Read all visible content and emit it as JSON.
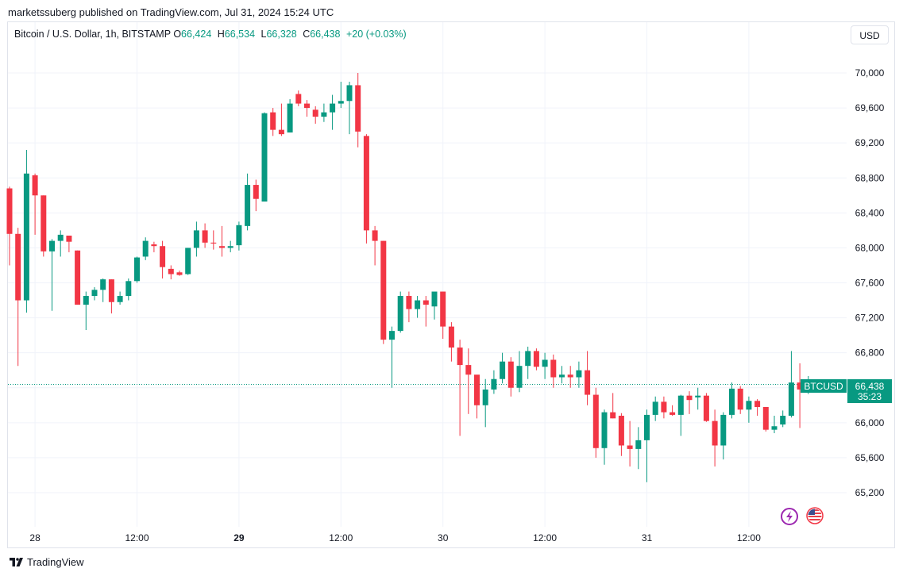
{
  "header": {
    "caption": "marketssuberg published on TradingView.com, Jul 31, 2024 15:24 UTC"
  },
  "symbol": {
    "title": "Bitcoin / U.S. Dollar, 1h, BITSTAMP",
    "open_label": "O",
    "open": "66,424",
    "high_label": "H",
    "high": "66,534",
    "low_label": "L",
    "low": "66,328",
    "close_label": "C",
    "close": "66,438",
    "change": "+20 (+0.03%)"
  },
  "currency_button": "USD",
  "price_tag": {
    "ticker": "BTCUSD",
    "price": "66,438",
    "countdown": "35:23"
  },
  "footer": {
    "brand": "TradingView"
  },
  "colors": {
    "up": "#089981",
    "down": "#f23645",
    "grid": "#f0f3fa",
    "axis_text": "#131722"
  },
  "icons": [
    "lightning-event-icon",
    "us-flag-icon"
  ],
  "chart_data": {
    "type": "candlestick",
    "title": "Bitcoin / U.S. Dollar, 1h, BITSTAMP",
    "ylim": [
      64950,
      70300
    ],
    "y_ticks": [
      "70,000",
      "69,600",
      "69,200",
      "68,800",
      "68,400",
      "68,000",
      "67,600",
      "67,200",
      "66,800",
      "66,400",
      "66,000",
      "65,600",
      "65,200"
    ],
    "y_tick_values": [
      70000,
      69600,
      69200,
      68800,
      68400,
      68000,
      67600,
      67200,
      66800,
      66400,
      66000,
      65600,
      65200
    ],
    "x_ticks": [
      {
        "label": "28",
        "bar": 3,
        "bold": false
      },
      {
        "label": "12:00",
        "bar": 15,
        "bold": false
      },
      {
        "label": "29",
        "bar": 27,
        "bold": true
      },
      {
        "label": "12:00",
        "bar": 39,
        "bold": false
      },
      {
        "label": "30",
        "bar": 51,
        "bold": false
      },
      {
        "label": "12:00",
        "bar": 63,
        "bold": false
      },
      {
        "label": "31",
        "bar": 75,
        "bold": false
      },
      {
        "label": "12:00",
        "bar": 87,
        "bold": false
      }
    ],
    "last_price": 66438,
    "candles": [
      [
        68680,
        68700,
        67800,
        68160
      ],
      [
        68160,
        68230,
        66650,
        67400
      ],
      [
        67400,
        69120,
        67260,
        68850
      ],
      [
        68830,
        68850,
        68150,
        68600
      ],
      [
        68600,
        68600,
        67900,
        67960
      ],
      [
        67960,
        68100,
        67280,
        68080
      ],
      [
        68080,
        68200,
        67900,
        68150
      ],
      [
        68140,
        68140,
        67950,
        68070
      ],
      [
        67970,
        67970,
        67350,
        67350
      ],
      [
        67350,
        67500,
        67060,
        67450
      ],
      [
        67450,
        67550,
        67400,
        67520
      ],
      [
        67520,
        67650,
        67380,
        67640
      ],
      [
        67640,
        67640,
        67250,
        67380
      ],
      [
        67380,
        67500,
        67350,
        67450
      ],
      [
        67450,
        67650,
        67400,
        67620
      ],
      [
        67620,
        67900,
        67600,
        67890
      ],
      [
        67900,
        68120,
        67860,
        68080
      ],
      [
        68040,
        68070,
        67950,
        68020
      ],
      [
        68020,
        68080,
        67650,
        67780
      ],
      [
        67760,
        67800,
        67640,
        67700
      ],
      [
        67720,
        67740,
        67680,
        67690
      ],
      [
        67700,
        68000,
        67690,
        68000
      ],
      [
        68000,
        68300,
        67900,
        68200
      ],
      [
        68200,
        68280,
        68000,
        68060
      ],
      [
        68060,
        68200,
        67980,
        68050
      ],
      [
        68020,
        68250,
        67900,
        68000
      ],
      [
        68000,
        68080,
        67950,
        68020
      ],
      [
        68030,
        68300,
        67970,
        68260
      ],
      [
        68250,
        68850,
        68200,
        68720
      ],
      [
        68720,
        68780,
        68420,
        68560
      ],
      [
        68530,
        69550,
        68530,
        69540
      ],
      [
        69550,
        69600,
        69280,
        69350
      ],
      [
        69350,
        69650,
        69280,
        69300
      ],
      [
        69320,
        69700,
        69320,
        69650
      ],
      [
        69760,
        69800,
        69620,
        69650
      ],
      [
        69650,
        69690,
        69500,
        69600
      ],
      [
        69580,
        69620,
        69420,
        69500
      ],
      [
        69500,
        69650,
        69440,
        69550
      ],
      [
        69550,
        69750,
        69350,
        69650
      ],
      [
        69650,
        69900,
        69600,
        69680
      ],
      [
        69680,
        69900,
        69300,
        69860
      ],
      [
        69860,
        70000,
        69150,
        69330
      ],
      [
        69280,
        69300,
        68050,
        68200
      ],
      [
        68200,
        68250,
        67800,
        68080
      ],
      [
        68080,
        68080,
        66900,
        66950
      ],
      [
        66950,
        67100,
        66400,
        67050
      ],
      [
        67050,
        67500,
        67030,
        67450
      ],
      [
        67450,
        67500,
        67150,
        67300
      ],
      [
        67300,
        67450,
        67200,
        67400
      ],
      [
        67400,
        67450,
        67100,
        67350
      ],
      [
        67330,
        67450,
        67180,
        67500
      ],
      [
        67500,
        67500,
        66960,
        67100
      ],
      [
        67100,
        67150,
        66700,
        66860
      ],
      [
        66860,
        66950,
        65850,
        66660
      ],
      [
        66660,
        66850,
        66100,
        66550
      ],
      [
        66550,
        66500,
        66050,
        66200
      ],
      [
        66200,
        66500,
        65950,
        66380
      ],
      [
        66380,
        66600,
        66330,
        66500
      ],
      [
        66500,
        66800,
        66450,
        66700
      ],
      [
        66700,
        66750,
        66300,
        66400
      ],
      [
        66400,
        66820,
        66350,
        66650
      ],
      [
        66650,
        66870,
        66500,
        66820
      ],
      [
        66820,
        66850,
        66600,
        66640
      ],
      [
        66640,
        66800,
        66500,
        66720
      ],
      [
        66720,
        66780,
        66400,
        66520
      ],
      [
        66520,
        66650,
        66450,
        66550
      ],
      [
        66550,
        66650,
        66400,
        66520
      ],
      [
        66520,
        66700,
        66400,
        66600
      ],
      [
        66600,
        66820,
        66200,
        66320
      ],
      [
        66320,
        66400,
        65600,
        65710
      ],
      [
        65710,
        66150,
        65520,
        66120
      ],
      [
        66120,
        66340,
        66050,
        66050
      ],
      [
        66080,
        66110,
        65620,
        65740
      ],
      [
        65740,
        66020,
        65500,
        65700
      ],
      [
        65700,
        65950,
        65470,
        65800
      ],
      [
        65800,
        66150,
        65320,
        66090
      ],
      [
        66090,
        66300,
        66020,
        66240
      ],
      [
        66240,
        66300,
        66050,
        66120
      ],
      [
        66120,
        66200,
        66080,
        66090
      ],
      [
        66090,
        66320,
        65850,
        66310
      ],
      [
        66310,
        66360,
        66100,
        66260
      ],
      [
        66290,
        66400,
        66150,
        66310
      ],
      [
        66310,
        66340,
        66010,
        66020
      ],
      [
        66020,
        66150,
        65500,
        65740
      ],
      [
        65740,
        66120,
        65580,
        66090
      ],
      [
        66090,
        66460,
        66050,
        66390
      ],
      [
        66390,
        66420,
        66100,
        66150
      ],
      [
        66150,
        66300,
        66000,
        66250
      ],
      [
        66250,
        66270,
        66080,
        66180
      ],
      [
        66180,
        66180,
        65900,
        65920
      ],
      [
        65920,
        66080,
        65880,
        65960
      ],
      [
        65980,
        66140,
        65950,
        66080
      ],
      [
        66080,
        66820,
        66060,
        66460
      ],
      [
        66460,
        66680,
        65940,
        66380
      ],
      [
        66424,
        66534,
        66328,
        66438
      ]
    ]
  }
}
